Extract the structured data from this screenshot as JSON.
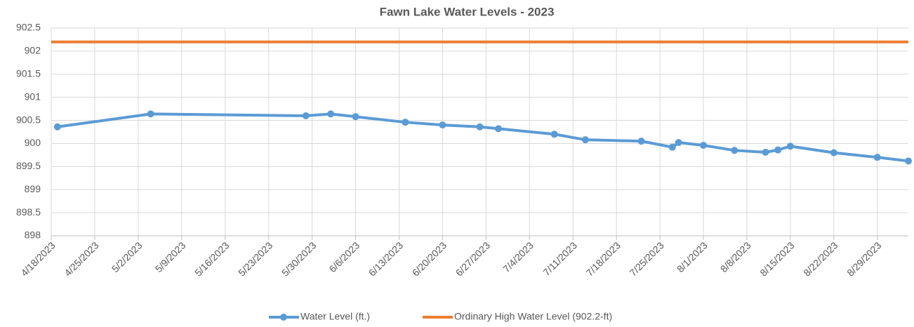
{
  "chart_data": {
    "type": "line",
    "title": "Fawn Lake Water Levels - 2023",
    "xlim": [
      "4/18/2023",
      "9/3/2023"
    ],
    "xticks": [
      "4/18/2023",
      "4/25/2023",
      "5/2/2023",
      "5/9/2023",
      "5/16/2023",
      "5/23/2023",
      "5/30/2023",
      "6/6/2023",
      "6/13/2023",
      "6/20/2023",
      "6/27/2023",
      "7/4/2023",
      "7/11/2023",
      "7/18/2023",
      "7/25/2023",
      "8/1/2023",
      "8/8/2023",
      "8/15/2023",
      "8/22/2023",
      "8/29/2023"
    ],
    "ylim": [
      898,
      902.5
    ],
    "yticks": [
      898,
      898.5,
      899,
      899.5,
      900,
      900.5,
      901,
      901.5,
      902,
      902.5
    ],
    "grid": true,
    "legend": "bottom",
    "series": [
      {
        "name": "Water Level (ft.)",
        "color": "#5b9bd5",
        "marker": true,
        "x": [
          "4/19/2023",
          "5/4/2023",
          "5/29/2023",
          "6/2/2023",
          "6/6/2023",
          "6/14/2023",
          "6/20/2023",
          "6/26/2023",
          "6/29/2023",
          "7/8/2023",
          "7/13/2023",
          "7/22/2023",
          "7/27/2023",
          "7/28/2023",
          "8/1/2023",
          "8/6/2023",
          "8/11/2023",
          "8/13/2023",
          "8/15/2023",
          "8/22/2023",
          "8/29/2023",
          "9/3/2023"
        ],
        "values": [
          900.36,
          900.64,
          900.6,
          900.64,
          900.58,
          900.46,
          900.4,
          900.36,
          900.32,
          900.2,
          900.08,
          900.05,
          899.92,
          900.02,
          899.96,
          899.85,
          899.81,
          899.86,
          899.94,
          899.8,
          899.7,
          899.62
        ]
      },
      {
        "name": "Ordinary High Water Level (902.2-ft)",
        "color": "#ed7d31",
        "marker": false,
        "x": [
          "4/18/2023",
          "9/3/2023"
        ],
        "values": [
          902.2,
          902.2
        ]
      }
    ]
  }
}
